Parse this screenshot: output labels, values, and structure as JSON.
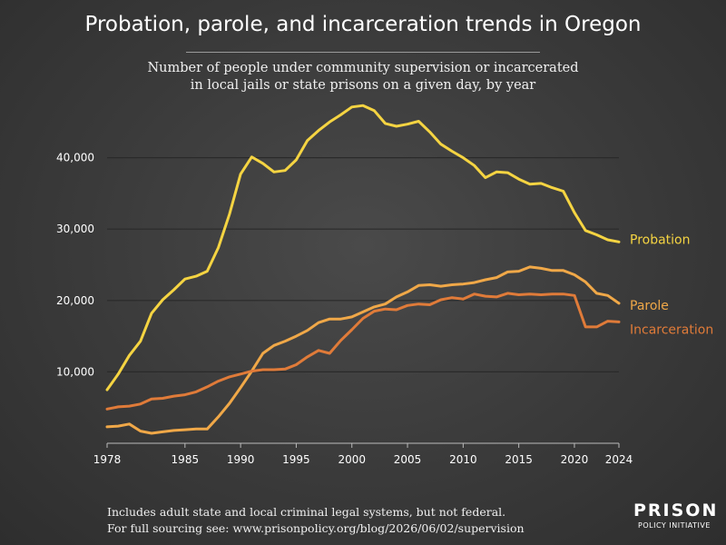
{
  "chart_data": {
    "type": "line",
    "title": "Probation, parole, and incarceration trends in Oregon",
    "subtitle_lines": [
      "Number of people under community supervision or incarcerated",
      "in local jails or state prisons on a given day, by year"
    ],
    "xlabel": "",
    "ylabel": "",
    "xlim": [
      1978,
      2024
    ],
    "ylim": [
      0,
      50000
    ],
    "x_ticks": [
      1978,
      1985,
      1990,
      1995,
      2000,
      2005,
      2010,
      2015,
      2020,
      2024
    ],
    "x_tick_labels": [
      "1978",
      "1985",
      "1990",
      "1995",
      "2000",
      "2005",
      "2010",
      "2015",
      "2020",
      "2024"
    ],
    "y_ticks": [
      10000,
      20000,
      30000,
      40000
    ],
    "y_tick_labels": [
      "10,000",
      "20,000",
      "30,000",
      "40,000"
    ],
    "grid": true,
    "x": [
      1978,
      1979,
      1980,
      1981,
      1982,
      1983,
      1984,
      1985,
      1986,
      1987,
      1988,
      1989,
      1990,
      1991,
      1992,
      1993,
      1994,
      1995,
      1996,
      1997,
      1998,
      1999,
      2000,
      2001,
      2002,
      2003,
      2004,
      2005,
      2006,
      2007,
      2008,
      2009,
      2010,
      2011,
      2012,
      2013,
      2014,
      2015,
      2016,
      2017,
      2018,
      2019,
      2020,
      2021,
      2022,
      2023,
      2024
    ],
    "series": [
      {
        "name": "Probation",
        "color": "#f5d442",
        "values": [
          7500,
          9700,
          12300,
          14300,
          18200,
          20100,
          21500,
          23000,
          23400,
          24100,
          27400,
          32100,
          37700,
          40100,
          39200,
          38000,
          38200,
          39700,
          42400,
          43800,
          45000,
          46000,
          47100,
          47300,
          46600,
          44800,
          44400,
          44700,
          45100,
          43600,
          41900,
          40900,
          40000,
          38900,
          37200,
          38000,
          37900,
          37000,
          36300,
          36400,
          35800,
          35300,
          32300,
          29800,
          29200,
          28500,
          28200
        ]
      },
      {
        "name": "Parole",
        "color": "#f0a848",
        "values": [
          2300,
          2400,
          2700,
          1700,
          1400,
          1600,
          1800,
          1900,
          2000,
          2000,
          3700,
          5600,
          7800,
          10100,
          12600,
          13700,
          14300,
          15000,
          15800,
          16900,
          17400,
          17400,
          17700,
          18400,
          19100,
          19500,
          20500,
          21200,
          22100,
          22200,
          22000,
          22200,
          22300,
          22500,
          22900,
          23200,
          24000,
          24100,
          24700,
          24500,
          24200,
          24200,
          23600,
          22600,
          21000,
          20700,
          19600
        ]
      },
      {
        "name": "Incarceration",
        "color": "#e07b39",
        "values": [
          4800,
          5100,
          5200,
          5500,
          6200,
          6300,
          6600,
          6800,
          7200,
          7900,
          8700,
          9300,
          9700,
          10100,
          10300,
          10300,
          10400,
          11000,
          12100,
          13000,
          12600,
          14400,
          15900,
          17500,
          18500,
          18800,
          18700,
          19300,
          19500,
          19400,
          20100,
          20400,
          20200,
          20900,
          20600,
          20500,
          21000,
          20800,
          20900,
          20800,
          20900,
          20900,
          20700,
          16300,
          16300,
          17100,
          17000
        ]
      }
    ],
    "footnote_lines": [
      "Includes adult state and local criminal legal systems, but not federal.",
      "For full sourcing see: www.prisonpolicy.org/blog/2026/06/02/supervision"
    ]
  },
  "logo": {
    "line1": "PRISON",
    "line2": "POLICY INITIATIVE"
  }
}
